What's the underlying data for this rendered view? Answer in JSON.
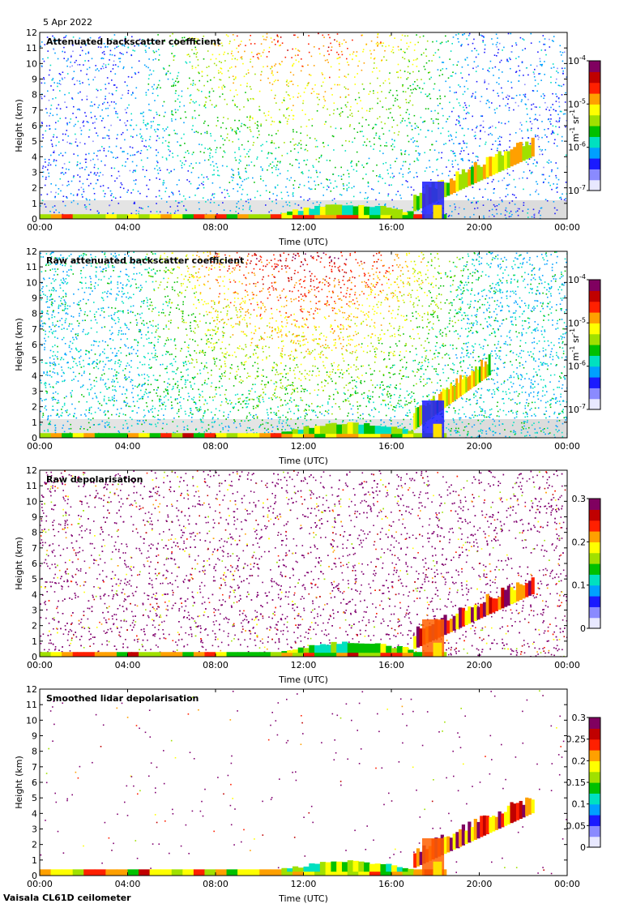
{
  "date": "5 Apr 2022",
  "instrument": "Vaisala CL61D ceilometer",
  "chart_data": [
    {
      "type": "heatmap",
      "title": "Attenuated backscatter coefficient",
      "xlabel": "Time (UTC)",
      "ylabel": "Height (km)",
      "x_ticks": [
        "00:00",
        "04:00",
        "08:00",
        "12:00",
        "16:00",
        "20:00",
        "00:00"
      ],
      "xlim": [
        0,
        24
      ],
      "y_ticks": [
        "0",
        "1",
        "2",
        "3",
        "4",
        "5",
        "6",
        "7",
        "8",
        "9",
        "10",
        "11",
        "12"
      ],
      "ylim": [
        0,
        12
      ],
      "colorbar": {
        "scale": "log",
        "unit_base": "m",
        "unit_base_exp": "-1",
        "unit_sr": " sr",
        "unit_sr_exp": "-1",
        "ticks": [
          {
            "base": "10",
            "exp": "-7",
            "frac": 0
          },
          {
            "base": "10",
            "exp": "-6",
            "frac": 0.333
          },
          {
            "base": "10",
            "exp": "-5",
            "frac": 0.667
          },
          {
            "base": "10",
            "exp": "-4",
            "frac": 1
          }
        ]
      },
      "noise_level": 0.6,
      "noise_gradient": "solar",
      "surface_layer_km": 0.3,
      "cloud_onset_h": 17.0,
      "cloud_end_h": 22.5
    },
    {
      "type": "heatmap",
      "title": "Raw attenuated backscatter coefficient",
      "xlabel": "Time (UTC)",
      "ylabel": "Height (km)",
      "x_ticks": [
        "00:00",
        "04:00",
        "08:00",
        "12:00",
        "16:00",
        "20:00",
        "00:00"
      ],
      "xlim": [
        0,
        24
      ],
      "y_ticks": [
        "0",
        "1",
        "2",
        "3",
        "4",
        "5",
        "6",
        "7",
        "8",
        "9",
        "10",
        "11",
        "12"
      ],
      "ylim": [
        0,
        12
      ],
      "colorbar": {
        "scale": "log",
        "unit_base": "m",
        "unit_base_exp": "-1",
        "unit_sr": " sr",
        "unit_sr_exp": "-1",
        "ticks": [
          {
            "base": "10",
            "exp": "-7",
            "frac": 0
          },
          {
            "base": "10",
            "exp": "-6",
            "frac": 0.333
          },
          {
            "base": "10",
            "exp": "-5",
            "frac": 0.667
          },
          {
            "base": "10",
            "exp": "-4",
            "frac": 1
          }
        ]
      },
      "noise_level": 1.0,
      "noise_gradient": "solar",
      "surface_layer_km": 0.3,
      "cloud_onset_h": 17.0,
      "cloud_end_h": 20.5
    },
    {
      "type": "heatmap",
      "title": "Raw depolarisation",
      "xlabel": "Time (UTC)",
      "ylabel": "Height (km)",
      "x_ticks": [
        "00:00",
        "04:00",
        "08:00",
        "12:00",
        "16:00",
        "20:00",
        "00:00"
      ],
      "xlim": [
        0,
        24
      ],
      "y_ticks": [
        "0",
        "1",
        "2",
        "3",
        "4",
        "5",
        "6",
        "7",
        "8",
        "9",
        "10",
        "11",
        "12"
      ],
      "ylim": [
        0,
        12
      ],
      "colorbar": {
        "scale": "linear",
        "ticks": [
          {
            "base": "0",
            "frac": 0
          },
          {
            "base": "0.1",
            "frac": 0.333
          },
          {
            "base": "0.2",
            "frac": 0.667
          },
          {
            "base": "0.3",
            "frac": 1
          }
        ]
      },
      "noise_level": 0.85,
      "noise_gradient": "purple",
      "surface_layer_km": 0.3,
      "cloud_onset_h": 17.0,
      "cloud_end_h": 22.5
    },
    {
      "type": "heatmap",
      "title": "Smoothed lidar depolarisation",
      "xlabel": "Time (UTC)",
      "ylabel": "Height (km)",
      "x_ticks": [
        "00:00",
        "04:00",
        "08:00",
        "12:00",
        "16:00",
        "20:00",
        "00:00"
      ],
      "xlim": [
        0,
        24
      ],
      "y_ticks": [
        "0",
        "1",
        "2",
        "3",
        "4",
        "5",
        "6",
        "7",
        "8",
        "9",
        "10",
        "11",
        "12"
      ],
      "ylim": [
        0,
        12
      ],
      "colorbar": {
        "scale": "linear",
        "ticks": [
          {
            "base": "0",
            "frac": 0
          },
          {
            "base": "0.05",
            "frac": 0.1667
          },
          {
            "base": "0.1",
            "frac": 0.3333
          },
          {
            "base": "0.15",
            "frac": 0.5
          },
          {
            "base": "0.2",
            "frac": 0.6667
          },
          {
            "base": "0.25",
            "frac": 0.8333
          },
          {
            "base": "0.3",
            "frac": 1
          }
        ]
      },
      "noise_level": 0.05,
      "noise_gradient": "purple",
      "surface_layer_km": 0.4,
      "cloud_onset_h": 17.0,
      "cloud_end_h": 22.5
    }
  ]
}
